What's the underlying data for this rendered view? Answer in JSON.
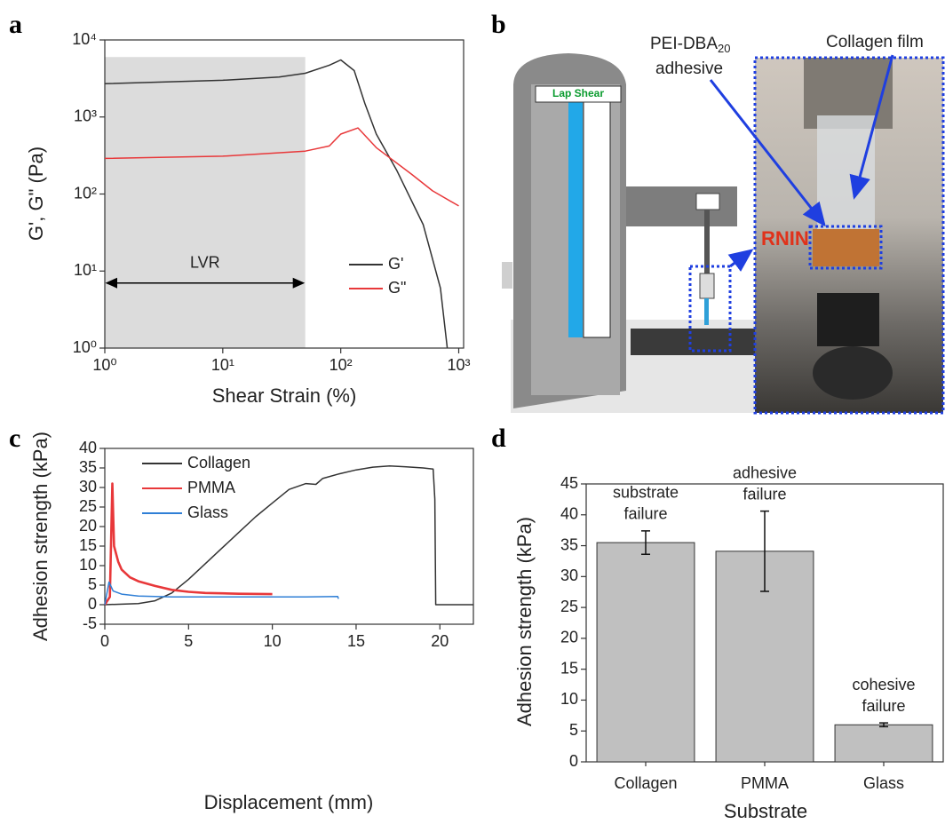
{
  "panel_labels": [
    "a",
    "b",
    "c",
    "d"
  ],
  "diagram": {
    "adhesive_label": "PEI-DBA",
    "adhesive_subscript": "20",
    "adhesive_label_2": "adhesive",
    "film_label": "Collagen film",
    "device_label": "Lap Shear",
    "warning_text": "RNIN"
  },
  "chart_data": [
    {
      "type": "line",
      "xlabel": "Shear Strain (%)",
      "ylabel": "G', G\" (Pa)",
      "xscale": "log",
      "yscale": "log",
      "xlim": [
        1,
        1100
      ],
      "ylim": [
        1,
        10000
      ],
      "xticks": [
        {
          "value": 1,
          "label": "10⁰"
        },
        {
          "value": 10,
          "label": "10¹"
        },
        {
          "value": 100,
          "label": "10²"
        },
        {
          "value": 1000,
          "label": "10³"
        }
      ],
      "yticks": [
        {
          "value": 1,
          "label": "10⁰"
        },
        {
          "value": 10,
          "label": "10¹"
        },
        {
          "value": 100,
          "label": "10²"
        },
        {
          "value": 1000,
          "label": "10³"
        },
        {
          "value": 10000,
          "label": "10⁴"
        }
      ],
      "legend": "lower right",
      "shaded": {
        "x": [
          1,
          50
        ],
        "y": [
          1,
          6000
        ],
        "color": "#dcdcdc"
      },
      "annotations": [
        {
          "text": "LVR",
          "x": [
            1,
            50
          ],
          "y": 7
        }
      ],
      "series": [
        {
          "name": "G'",
          "color": "#333333",
          "x": [
            1,
            10,
            30,
            50,
            80,
            100,
            130,
            160,
            200,
            300,
            500,
            700,
            800
          ],
          "values": [
            2700,
            3000,
            3300,
            3700,
            4700,
            5500,
            4000,
            1500,
            600,
            200,
            40,
            6,
            1
          ]
        },
        {
          "name": "G\"",
          "color": "#e8383a",
          "x": [
            1,
            10,
            50,
            80,
            100,
            140,
            200,
            400,
            600,
            1000
          ],
          "values": [
            290,
            310,
            360,
            420,
            600,
            720,
            400,
            180,
            110,
            70
          ]
        }
      ]
    },
    {
      "type": "line",
      "xlabel": "Displacement (mm)",
      "ylabel": "Adhesion strength (kPa)",
      "xlim": [
        0,
        22
      ],
      "ylim": [
        -5,
        40
      ],
      "xticks": [
        0,
        5,
        10,
        15,
        20
      ],
      "yticks": [
        -5,
        0,
        5,
        10,
        15,
        20,
        25,
        30,
        35,
        40
      ],
      "legend": "upper left",
      "series": [
        {
          "name": "Collagen",
          "color": "#333333",
          "x": [
            0,
            2,
            3,
            4,
            5,
            6,
            7,
            8,
            9,
            10,
            11,
            12,
            12.6,
            13,
            14,
            15,
            16,
            17,
            18,
            19,
            19.6,
            19.7,
            19.75,
            22
          ],
          "values": [
            0,
            0.3,
            1,
            3,
            6.5,
            10.5,
            14.5,
            18.5,
            22.5,
            26,
            29.5,
            31,
            30.8,
            32.3,
            33.5,
            34.5,
            35.2,
            35.5,
            35.3,
            35,
            34.7,
            27,
            0,
            0
          ]
        },
        {
          "name": "PMMA",
          "color": "#e8383a",
          "x": [
            0,
            0.3,
            0.45,
            0.55,
            0.8,
            1,
            1.5,
            2,
            3,
            4,
            5,
            6,
            7,
            8,
            10
          ],
          "values": [
            0,
            2,
            31,
            15,
            11,
            9,
            7,
            6,
            4.8,
            3.8,
            3.3,
            3,
            2.9,
            2.8,
            2.7
          ]
        },
        {
          "name": "Glass",
          "color": "#2f7fd6",
          "x": [
            0,
            0.25,
            0.5,
            1,
            2,
            4,
            8,
            12,
            13.9,
            13.95
          ],
          "values": [
            0,
            5.8,
            3.5,
            2.7,
            2.2,
            2,
            2,
            2,
            2.1,
            1.5
          ]
        }
      ]
    },
    {
      "type": "bar",
      "xlabel": "Substrate",
      "ylabel": "Adhesion strength (kPa)",
      "categories": [
        "Collagen",
        "PMMA",
        "Glass"
      ],
      "values": [
        35.5,
        34.1,
        6
      ],
      "errors": [
        1.9,
        6.5,
        0.3
      ],
      "color": "#c0c0c0",
      "ylim": [
        0,
        45
      ],
      "yticks": [
        0,
        5,
        10,
        15,
        20,
        25,
        30,
        35,
        40,
        45
      ],
      "annotations": [
        [
          "substrate",
          "failure"
        ],
        [
          "adhesive",
          "failure"
        ],
        [
          "cohesive",
          "failure"
        ]
      ]
    }
  ]
}
